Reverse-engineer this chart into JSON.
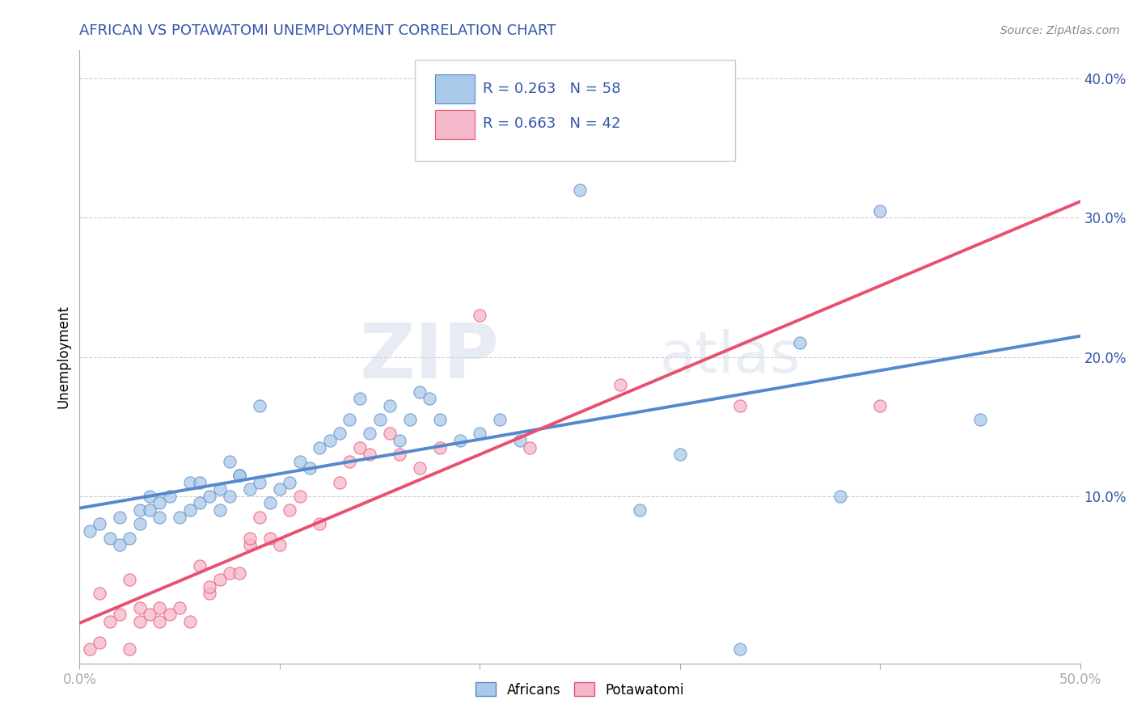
{
  "title": "AFRICAN VS POTAWATOMI UNEMPLOYMENT CORRELATION CHART",
  "source": "Source: ZipAtlas.com",
  "ylabel": "Unemployment",
  "xlim": [
    0.0,
    0.5
  ],
  "ylim": [
    -0.02,
    0.42
  ],
  "xticks": [
    0.0,
    0.1,
    0.2,
    0.3,
    0.4,
    0.5
  ],
  "xtick_labels": [
    "0.0%",
    "",
    "",
    "",
    "",
    "50.0%"
  ],
  "yticks": [
    0.1,
    0.2,
    0.3,
    0.4
  ],
  "ytick_labels": [
    "10.0%",
    "20.0%",
    "30.0%",
    "40.0%"
  ],
  "legend_r1": "R = 0.263",
  "legend_n1": "N = 58",
  "legend_r2": "R = 0.663",
  "legend_n2": "N = 42",
  "color_african": "#aac9e8",
  "color_potawatomi": "#f5b8ca",
  "color_line_african": "#5588cc",
  "color_line_potawatomi": "#e85070",
  "title_color": "#3355aa",
  "axis_color": "#aaaaaa",
  "grid_color": "#cccccc",
  "watermark_zip": "ZIP",
  "watermark_atlas": "atlas",
  "africans_x": [
    0.005,
    0.01,
    0.015,
    0.02,
    0.02,
    0.025,
    0.03,
    0.03,
    0.035,
    0.035,
    0.04,
    0.04,
    0.045,
    0.05,
    0.055,
    0.055,
    0.06,
    0.06,
    0.065,
    0.07,
    0.07,
    0.075,
    0.075,
    0.08,
    0.08,
    0.085,
    0.09,
    0.09,
    0.095,
    0.1,
    0.105,
    0.11,
    0.115,
    0.12,
    0.125,
    0.13,
    0.135,
    0.14,
    0.145,
    0.15,
    0.155,
    0.16,
    0.165,
    0.17,
    0.175,
    0.18,
    0.19,
    0.2,
    0.21,
    0.22,
    0.25,
    0.28,
    0.3,
    0.33,
    0.36,
    0.38,
    0.4,
    0.45
  ],
  "africans_y": [
    0.075,
    0.08,
    0.07,
    0.065,
    0.085,
    0.07,
    0.09,
    0.08,
    0.09,
    0.1,
    0.085,
    0.095,
    0.1,
    0.085,
    0.11,
    0.09,
    0.095,
    0.11,
    0.1,
    0.09,
    0.105,
    0.1,
    0.125,
    0.115,
    0.115,
    0.105,
    0.11,
    0.165,
    0.095,
    0.105,
    0.11,
    0.125,
    0.12,
    0.135,
    0.14,
    0.145,
    0.155,
    0.17,
    0.145,
    0.155,
    0.165,
    0.14,
    0.155,
    0.175,
    0.17,
    0.155,
    0.14,
    0.145,
    0.155,
    0.14,
    0.32,
    0.09,
    0.13,
    -0.01,
    0.21,
    0.1,
    0.305,
    0.155
  ],
  "potawatomi_x": [
    0.005,
    0.01,
    0.01,
    0.015,
    0.02,
    0.025,
    0.025,
    0.03,
    0.03,
    0.035,
    0.04,
    0.04,
    0.045,
    0.05,
    0.055,
    0.06,
    0.065,
    0.065,
    0.07,
    0.075,
    0.08,
    0.085,
    0.085,
    0.09,
    0.095,
    0.1,
    0.105,
    0.11,
    0.12,
    0.13,
    0.135,
    0.14,
    0.145,
    0.155,
    0.16,
    0.17,
    0.18,
    0.2,
    0.225,
    0.27,
    0.33,
    0.4
  ],
  "potawatomi_y": [
    -0.01,
    0.03,
    -0.005,
    0.01,
    0.015,
    -0.01,
    0.04,
    0.02,
    0.01,
    0.015,
    0.02,
    0.01,
    0.015,
    0.02,
    0.01,
    0.05,
    0.03,
    0.035,
    0.04,
    0.045,
    0.045,
    0.065,
    0.07,
    0.085,
    0.07,
    0.065,
    0.09,
    0.1,
    0.08,
    0.11,
    0.125,
    0.135,
    0.13,
    0.145,
    0.13,
    0.12,
    0.135,
    0.23,
    0.135,
    0.18,
    0.165,
    0.165
  ]
}
